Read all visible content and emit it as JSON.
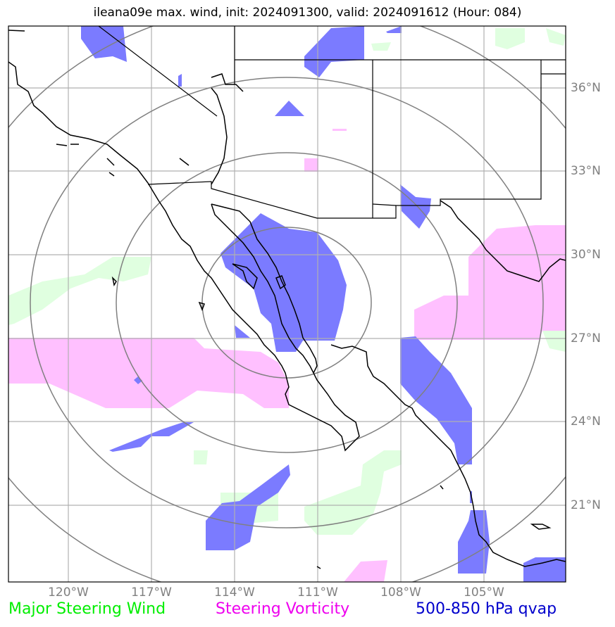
{
  "title": "ileana09e max. wind, init: 2024091300, valid: 2024091612 (Hour: 084)",
  "lat_labels": [
    "36°N",
    "33°N",
    "30°N",
    "27°N",
    "24°N",
    "21°N"
  ],
  "lon_labels": [
    "120°W",
    "117°W",
    "114°W",
    "111°W",
    "108°W",
    "105°W"
  ],
  "legend": {
    "steering_wind": "Major Steering Wind",
    "steering_vorticity": "Steering Vorticity",
    "qvap": "500-850 hPa qvap"
  },
  "colors": {
    "steering_wind": "#00ee00",
    "steering_vorticity": "#ee00ee",
    "qvap": "#0000cc",
    "qvap_fill": "#7b7bff",
    "vort_fill": "#ffc0ff",
    "wind_fill": "#e0ffe0",
    "grid": "#b0b0b0",
    "ring": "#808080"
  }
}
